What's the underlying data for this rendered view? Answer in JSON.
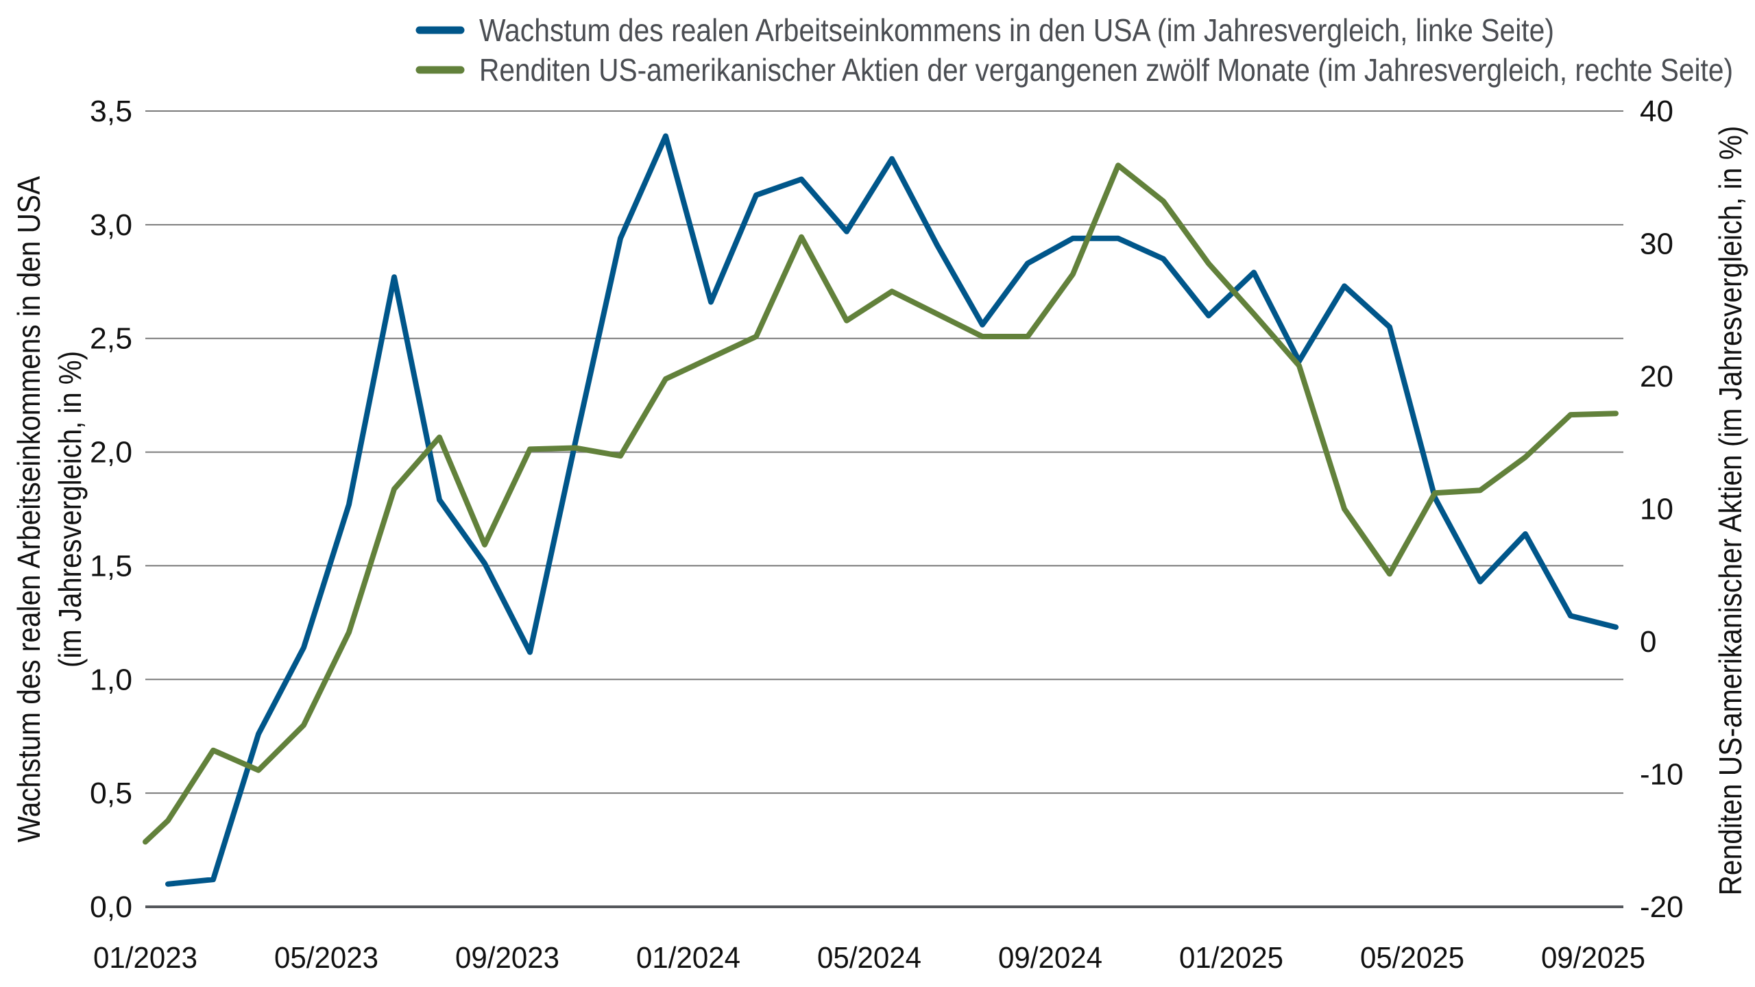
{
  "chart_data": {
    "type": "line",
    "title": "",
    "legend": {
      "placement": "top",
      "entries": [
        "Wachstum des realen Arbeitseinkommens in den USA (im Jahresvergleich, linke Seite)",
        "Renditen US-amerikanischer Aktien der vergangenen zwölf Monate (im Jahresvergleich, rechte Seite)"
      ]
    },
    "xlabel": "",
    "x_ticks": [
      "01/2023",
      "05/2023",
      "09/2023",
      "01/2024",
      "05/2024",
      "09/2024",
      "01/2025",
      "05/2025",
      "09/2025"
    ],
    "y_left": {
      "label_line1": "Wachstum des realen Arbeitseinkommens in den USA",
      "label_line2": "(im Jahresvergleich, in %)",
      "ylim": [
        0,
        3.5
      ],
      "ticks": [
        "0,0",
        "0,5",
        "1,0",
        "1,5",
        "2,0",
        "2,5",
        "3,0",
        "3,5"
      ]
    },
    "y_right": {
      "label": "Renditen US-amerikanischer Aktien (im Jahresvergleich, in %)",
      "ylim": [
        -20,
        40
      ],
      "ticks": [
        "-20",
        "-10",
        "0",
        "10",
        "20",
        "30",
        "40"
      ]
    },
    "grid": true,
    "series": [
      {
        "name": "Wachstum des realen Arbeitseinkommens in den USA (im Jahresvergleich, linke Seite)",
        "axis": "left",
        "color": "#00568A",
        "x": [
          "2023-01",
          "2023-02",
          "2023-03",
          "2023-04",
          "2023-05",
          "2023-06",
          "2023-07",
          "2023-08",
          "2023-09",
          "2023-10",
          "2023-11",
          "2023-12",
          "2024-01",
          "2024-02",
          "2024-03",
          "2024-04",
          "2024-05",
          "2024-06",
          "2024-07",
          "2024-08",
          "2024-09",
          "2024-10",
          "2024-11",
          "2024-12",
          "2025-01",
          "2025-02",
          "2025-03",
          "2025-04",
          "2025-05",
          "2025-06",
          "2025-07",
          "2025-08",
          "2025-09"
        ],
        "values": [
          0.1,
          0.12,
          0.76,
          1.14,
          1.77,
          2.77,
          1.79,
          1.51,
          1.12,
          2.04,
          2.94,
          3.39,
          2.66,
          3.13,
          3.2,
          2.97,
          3.29,
          2.91,
          2.56,
          2.83,
          2.94,
          2.94,
          2.85,
          2.6,
          2.79,
          2.4,
          2.73,
          2.55,
          1.8,
          1.43,
          1.64,
          1.28,
          1.23
        ]
      },
      {
        "name": "Renditen US-amerikanischer Aktien der vergangenen zwölf Monate (im Jahresvergleich, rechte Seite)",
        "axis": "right",
        "color": "#62813B",
        "x": [
          "2022-12",
          "2023-01",
          "2023-02",
          "2023-03",
          "2023-04",
          "2023-05",
          "2023-06",
          "2023-07",
          "2023-08",
          "2023-09",
          "2023-10",
          "2023-11",
          "2023-12",
          "2024-01",
          "2024-02",
          "2024-03",
          "2024-04",
          "2024-05",
          "2024-06",
          "2024-07",
          "2024-08",
          "2024-09",
          "2024-10",
          "2024-11",
          "2024-12",
          "2025-01",
          "2025-02",
          "2025-03",
          "2025-04",
          "2025-05",
          "2025-06",
          "2025-07",
          "2025-08",
          "2025-09"
        ],
        "values": [
          -15.1,
          -13.5,
          -8.2,
          -9.7,
          -6.3,
          0.7,
          11.5,
          15.4,
          7.3,
          14.5,
          14.6,
          14.0,
          19.8,
          21.4,
          23.0,
          30.5,
          24.2,
          26.4,
          24.7,
          23.0,
          23.0,
          27.7,
          35.9,
          33.2,
          28.5,
          24.7,
          20.8,
          10.0,
          5.1,
          11.2,
          11.4,
          13.9,
          17.1,
          17.2
        ]
      }
    ]
  }
}
